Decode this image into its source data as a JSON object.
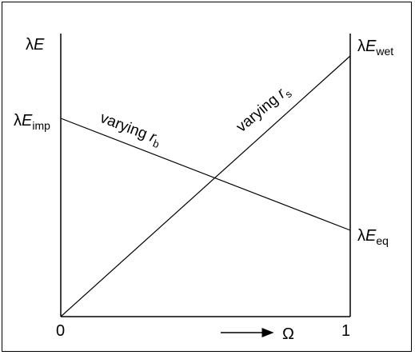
{
  "axis": {
    "y_symbol": "λ",
    "y_var": "E",
    "x_start": "0",
    "x_end": "1",
    "x_symbol": "Ω"
  },
  "left_label": {
    "symbol": "λ",
    "var": "E",
    "sub": "imp"
  },
  "right_top_label": {
    "symbol": "λ",
    "var": "E",
    "sub": "wet"
  },
  "right_bottom_label": {
    "symbol": "λ",
    "var": "E",
    "sub": "eq"
  },
  "line_rb": {
    "text": "varying ",
    "var": "r",
    "sub": "b"
  },
  "line_rs": {
    "text": "varying ",
    "var": "r",
    "sub": "s"
  },
  "colors": {
    "stroke": "#000000",
    "background": "#ffffff"
  }
}
